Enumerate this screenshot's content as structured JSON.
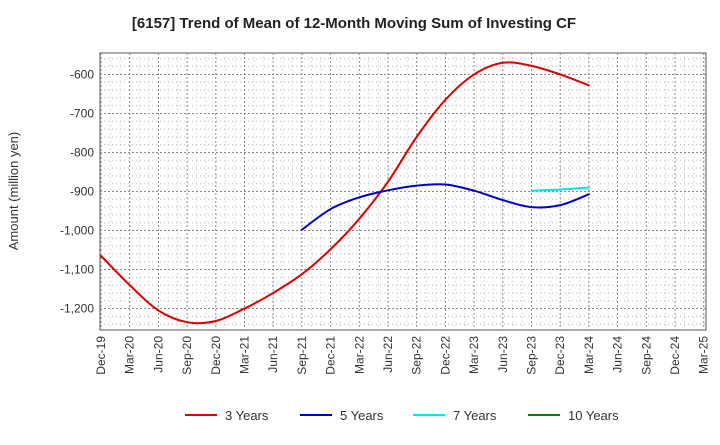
{
  "chart_data": {
    "type": "line",
    "title": "[6157]  Trend of Mean of 12-Month Moving Sum of Investing CF",
    "xlabel": "",
    "ylabel": "Amount (million yen)",
    "ylim": [
      -1255,
      -545
    ],
    "grid": true,
    "legend_position": "bottom-center",
    "y_ticks": [
      -600,
      -700,
      -800,
      -900,
      -1000,
      -1100,
      -1200
    ],
    "y_tick_labels": [
      "-600",
      "-700",
      "-800",
      "-900",
      "-1,000",
      "-1,100",
      "-1,200"
    ],
    "x_ticks": [
      "Dec-19",
      "Mar-20",
      "Jun-20",
      "Sep-20",
      "Dec-20",
      "Mar-21",
      "Jun-21",
      "Sep-21",
      "Dec-21",
      "Mar-22",
      "Jun-22",
      "Sep-22",
      "Dec-22",
      "Mar-23",
      "Jun-23",
      "Sep-23",
      "Dec-23",
      "Mar-24",
      "Jun-24",
      "Sep-24",
      "Dec-24",
      "Mar-25"
    ],
    "series": [
      {
        "name": "3 Years",
        "color": "#dd0000",
        "x": [
          "Dec-19",
          "Mar-20",
          "Jun-20",
          "Sep-20",
          "Dec-20",
          "Mar-21",
          "Jun-21",
          "Sep-21",
          "Dec-21",
          "Mar-22",
          "Jun-22",
          "Sep-22",
          "Dec-22",
          "Mar-23",
          "Jun-23",
          "Sep-23",
          "Dec-23",
          "Mar-24"
        ],
        "values": [
          -1065,
          -1140,
          -1205,
          -1235,
          -1232,
          -1200,
          -1160,
          -1112,
          -1048,
          -970,
          -875,
          -760,
          -665,
          -600,
          -570,
          -578,
          -600,
          -628
        ]
      },
      {
        "name": "5 Years",
        "color": "#0000cc",
        "x": [
          "Sep-21",
          "Dec-21",
          "Mar-22",
          "Jun-22",
          "Sep-22",
          "Dec-22",
          "Mar-23",
          "Jun-23",
          "Sep-23",
          "Dec-23",
          "Mar-24"
        ],
        "values": [
          -998,
          -945,
          -915,
          -897,
          -885,
          -882,
          -898,
          -922,
          -940,
          -935,
          -907
        ]
      },
      {
        "name": "7 Years",
        "color": "#00e5ee",
        "x": [
          "Sep-23",
          "Dec-23",
          "Mar-24"
        ],
        "values": [
          -898,
          -895,
          -890
        ]
      },
      {
        "name": "10 Years",
        "color": "#008000",
        "x": [],
        "values": []
      }
    ]
  }
}
